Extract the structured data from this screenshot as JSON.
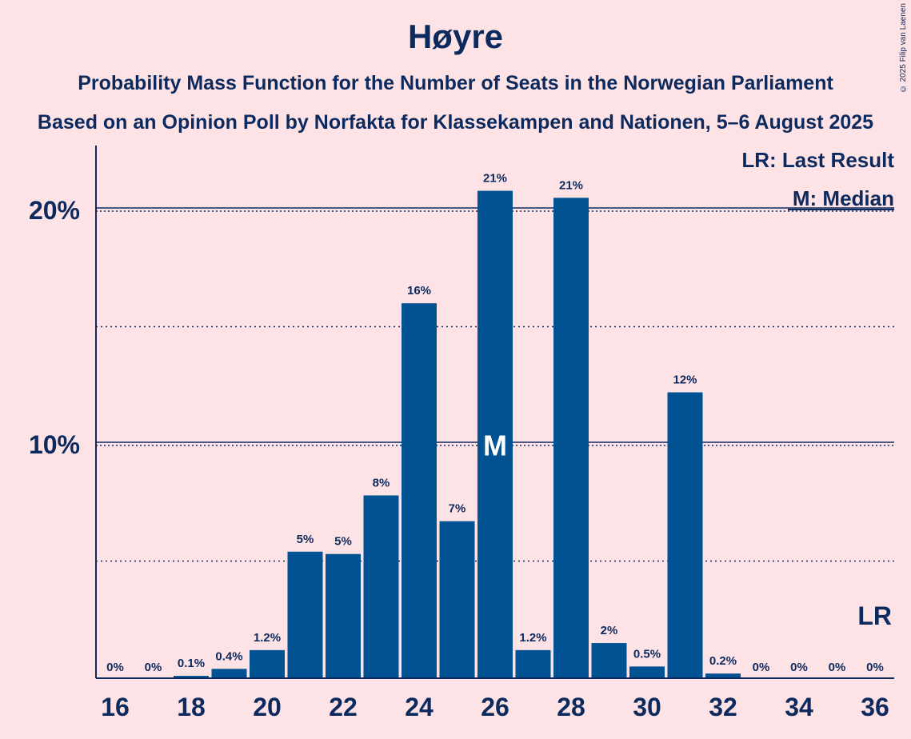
{
  "chart_data": {
    "type": "bar",
    "title": "Høyre",
    "subtitle": "Probability Mass Function for the Number of Seats in the Norwegian Parliament",
    "subtitle2": "Based on an Opinion Poll by Norfakta for Klassekampen and Nationen, 5–6 August 2025",
    "copyright": "© 2025 Filip van Laenen",
    "categories": [
      16,
      17,
      18,
      19,
      20,
      21,
      22,
      23,
      24,
      25,
      26,
      27,
      28,
      29,
      30,
      31,
      32,
      33,
      34,
      35,
      36
    ],
    "values": [
      0,
      0,
      0.1,
      0.4,
      1.2,
      5.4,
      5.3,
      7.8,
      16,
      6.7,
      20.8,
      1.2,
      20.5,
      1.5,
      0.5,
      12.2,
      0.2,
      0,
      0,
      0,
      0
    ],
    "data_labels": [
      "0%",
      "0%",
      "0.1%",
      "0.4%",
      "1.2%",
      "5%",
      "5%",
      "8%",
      "16%",
      "7%",
      "21%",
      "1.2%",
      "21%",
      "2%",
      "0.5%",
      "12%",
      "0.2%",
      "0%",
      "0%",
      "0%",
      "0%"
    ],
    "xtick_labels": [
      "16",
      "18",
      "20",
      "22",
      "24",
      "26",
      "28",
      "30",
      "32",
      "34",
      "36"
    ],
    "ytick_labels": [
      "10%",
      "20%"
    ],
    "ylim": [
      0,
      22.7
    ],
    "median": 26,
    "median_label": "M",
    "last_result": 36,
    "last_result_label": "LR",
    "legend": [
      "LR: Last Result",
      "M: Median"
    ],
    "colors": {
      "bar": "#005293",
      "background": "#fde3e6",
      "text": "#0d2a5e"
    }
  }
}
